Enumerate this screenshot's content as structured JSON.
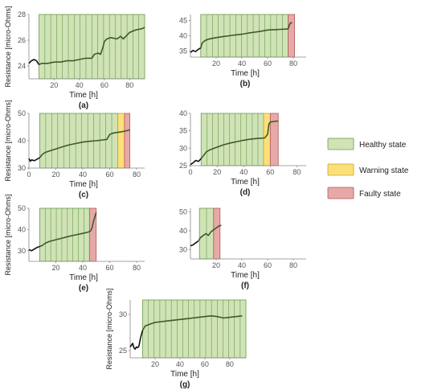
{
  "legend": {
    "placement": "right",
    "items": [
      {
        "key": "healthy",
        "label": "Healthy state",
        "color": "#cfe3b6",
        "stroke": "#6a9a4a"
      },
      {
        "key": "warning",
        "label": "Warning state",
        "color": "#fbe07a",
        "stroke": "#c9a52a"
      },
      {
        "key": "faulty",
        "label": "Faulty state",
        "color": "#e8a8a8",
        "stroke": "#b05a5a"
      }
    ]
  },
  "colors": {
    "line": "#3d5a2a",
    "lineDark": "#111111",
    "axis": "#888888"
  },
  "chart_data": [
    {
      "type": "line",
      "panel": "(a)",
      "xlabel": "Time [h]",
      "ylabel": "Resistance [micro-Ohms]",
      "xlim": [
        0,
        92
      ],
      "ylim": [
        23,
        28
      ],
      "xticks": [
        20,
        40,
        60,
        80
      ],
      "yticks": [
        24,
        26,
        28
      ],
      "regions": [
        {
          "state": "healthy",
          "from": 8,
          "to": 92
        }
      ],
      "x": [
        0,
        2,
        4,
        6,
        8,
        10,
        15,
        20,
        25,
        30,
        35,
        40,
        45,
        50,
        52,
        55,
        57,
        59,
        60,
        62,
        65,
        70,
        73,
        75,
        80,
        85,
        90,
        92
      ],
      "y": [
        24.2,
        24.4,
        24.5,
        24.4,
        24.1,
        24.2,
        24.2,
        24.3,
        24.3,
        24.4,
        24.4,
        24.5,
        24.6,
        24.6,
        24.9,
        25.0,
        24.9,
        25.5,
        25.9,
        26.1,
        26.2,
        26.1,
        26.3,
        26.1,
        26.6,
        26.8,
        26.9,
        27.0
      ]
    },
    {
      "type": "line",
      "panel": "(b)",
      "xlabel": "Time [h]",
      "ylabel": "",
      "xlim": [
        0,
        90
      ],
      "ylim": [
        33,
        47
      ],
      "xticks": [
        20,
        40,
        60,
        80
      ],
      "yticks": [
        35,
        40,
        45
      ],
      "regions": [
        {
          "state": "healthy",
          "from": 8,
          "to": 76
        },
        {
          "state": "faulty",
          "from": 76,
          "to": 81
        }
      ],
      "x": [
        0,
        2,
        4,
        6,
        8,
        9,
        10,
        12,
        15,
        20,
        25,
        30,
        35,
        40,
        45,
        50,
        55,
        60,
        65,
        70,
        74,
        76,
        77,
        78,
        79
      ],
      "y": [
        34.5,
        35.2,
        34.8,
        35.5,
        36.0,
        37.5,
        38.0,
        38.6,
        39.0,
        39.4,
        39.7,
        40.0,
        40.3,
        40.5,
        40.9,
        41.2,
        41.5,
        41.9,
        42.0,
        42.1,
        42.2,
        42.3,
        43.6,
        44.3,
        44.2
      ]
    },
    {
      "type": "line",
      "panel": "(c)",
      "xlabel": "Time [h]",
      "ylabel": "Resistance [micro-Ohms]",
      "xlim": [
        0,
        86
      ],
      "ylim": [
        30,
        50
      ],
      "xticks": [
        0,
        20,
        40,
        60,
        80
      ],
      "yticks": [
        30,
        40,
        50
      ],
      "regions": [
        {
          "state": "healthy",
          "from": 8,
          "to": 66
        },
        {
          "state": "warning",
          "from": 66,
          "to": 71
        },
        {
          "state": "faulty",
          "from": 71,
          "to": 75
        }
      ],
      "x": [
        0,
        1,
        2,
        4,
        6,
        8,
        10,
        12,
        15,
        20,
        25,
        30,
        35,
        40,
        45,
        50,
        55,
        58,
        60,
        62,
        65,
        68,
        71,
        73,
        75
      ],
      "y": [
        33.5,
        32.5,
        33.0,
        32.7,
        33.2,
        33.8,
        35.0,
        35.7,
        36.2,
        37.0,
        37.8,
        38.5,
        39.0,
        39.5,
        39.8,
        40.0,
        40.3,
        40.5,
        42.3,
        42.7,
        43.0,
        43.2,
        43.5,
        43.7,
        44.0
      ]
    },
    {
      "type": "line",
      "panel": "(d)",
      "xlabel": "Time [h]",
      "ylabel": "",
      "xlim": [
        0,
        87
      ],
      "ylim": [
        25,
        40
      ],
      "xticks": [
        0,
        20,
        40,
        60,
        80
      ],
      "yticks": [
        25,
        30,
        35,
        40
      ],
      "regions": [
        {
          "state": "healthy",
          "from": 8,
          "to": 55
        },
        {
          "state": "warning",
          "from": 55,
          "to": 60
        },
        {
          "state": "faulty",
          "from": 60,
          "to": 66
        }
      ],
      "x": [
        0,
        2,
        4,
        6,
        8,
        10,
        12,
        15,
        20,
        25,
        30,
        35,
        40,
        45,
        50,
        54,
        56,
        58,
        59,
        60,
        63,
        66
      ],
      "y": [
        25.3,
        25.8,
        26.5,
        26.2,
        27.0,
        28.0,
        29.0,
        29.6,
        30.3,
        31.0,
        31.5,
        31.9,
        32.3,
        32.6,
        32.8,
        32.9,
        33.0,
        34.0,
        37.0,
        37.5,
        37.7,
        37.8
      ]
    },
    {
      "type": "line",
      "panel": "(e)",
      "xlabel": "Time [h]",
      "ylabel": "Resistance [micro-Ohms]",
      "xlim": [
        0,
        86
      ],
      "ylim": [
        25,
        50
      ],
      "xticks": [
        20,
        40,
        60,
        80
      ],
      "yticks": [
        30,
        40,
        50
      ],
      "regions": [
        {
          "state": "healthy",
          "from": 8,
          "to": 45
        },
        {
          "state": "faulty",
          "from": 45,
          "to": 50
        }
      ],
      "x": [
        0,
        2,
        4,
        6,
        8,
        10,
        12,
        15,
        20,
        25,
        30,
        35,
        40,
        44,
        45,
        46,
        47,
        48,
        49,
        50
      ],
      "y": [
        30.5,
        30.0,
        30.8,
        31.5,
        32.0,
        32.5,
        33.5,
        34.3,
        35.2,
        36.0,
        36.8,
        37.5,
        38.2,
        38.8,
        39.0,
        39.5,
        41.0,
        44.0,
        46.0,
        48.0
      ]
    },
    {
      "type": "line",
      "panel": "(f)",
      "xlabel": "Time [h]",
      "ylabel": "",
      "xlim": [
        0,
        90
      ],
      "ylim": [
        25,
        52
      ],
      "xticks": [
        20,
        40,
        60,
        80
      ],
      "yticks": [
        30,
        40,
        50
      ],
      "regions": [
        {
          "state": "healthy",
          "from": 7,
          "to": 18
        },
        {
          "state": "faulty",
          "from": 18,
          "to": 23
        }
      ],
      "x": [
        0,
        2,
        4,
        6,
        8,
        10,
        12,
        14,
        16,
        18,
        20,
        22,
        24
      ],
      "y": [
        32.0,
        32.5,
        33.5,
        34.5,
        36.5,
        37.5,
        38.5,
        37.5,
        39.5,
        40.5,
        41.5,
        42.5,
        43.0
      ]
    },
    {
      "type": "line",
      "panel": "(g)",
      "xlabel": "Time [h]",
      "ylabel": "Resistance [micro-Ohms]",
      "xlim": [
        0,
        93
      ],
      "ylim": [
        24,
        32
      ],
      "xticks": [
        20,
        40,
        60,
        80
      ],
      "yticks": [
        25,
        30
      ],
      "regions": [
        {
          "state": "healthy",
          "from": 10,
          "to": 93
        }
      ],
      "x": [
        0,
        2,
        3,
        4,
        5,
        6,
        7,
        8,
        9,
        10,
        12,
        15,
        20,
        25,
        30,
        35,
        40,
        45,
        50,
        55,
        60,
        65,
        70,
        75,
        80,
        85,
        90
      ],
      "y": [
        25.5,
        26.0,
        25.4,
        25.2,
        25.5,
        25.4,
        25.6,
        26.5,
        27.2,
        27.8,
        28.4,
        28.6,
        28.9,
        29.0,
        29.1,
        29.2,
        29.3,
        29.4,
        29.5,
        29.6,
        29.7,
        29.8,
        29.7,
        29.5,
        29.6,
        29.7,
        29.8
      ]
    }
  ]
}
